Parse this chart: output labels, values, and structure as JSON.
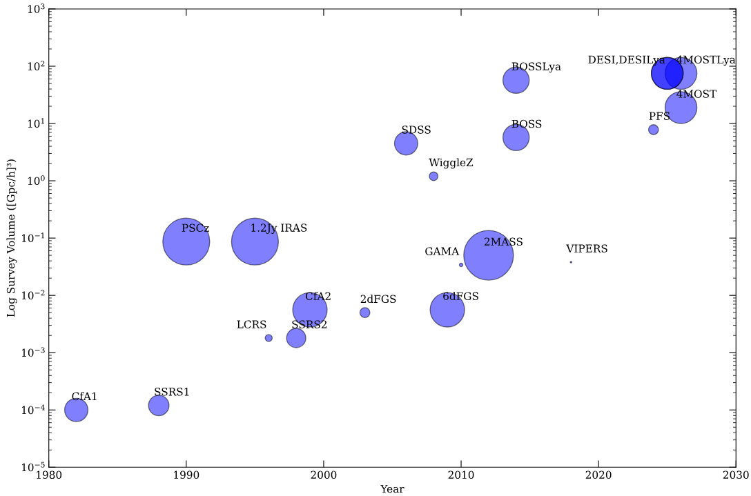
{
  "chart_data": {
    "type": "bubble",
    "xlabel": "Year",
    "ylabel": "Log Survey Volume ([Gpc/h]³)",
    "log": "y",
    "xlim": [
      1980,
      2030
    ],
    "xticks": [
      1980,
      1990,
      2000,
      2010,
      2020,
      2030
    ],
    "ylim": [
      1e-05,
      1000
    ],
    "yticks": [
      {
        "value": 1e-05,
        "label": "10$^{−5}$"
      },
      {
        "value": 0.0001,
        "label": "10$^{−4}$"
      },
      {
        "value": 0.001,
        "label": "10$^{−3}$"
      },
      {
        "value": 0.01,
        "label": "10$^{−2}$"
      },
      {
        "value": 0.1,
        "label": "10$^{−1}$"
      },
      {
        "value": 1,
        "label": "10$^{0}$"
      },
      {
        "value": 10,
        "label": "10$^{1}$"
      },
      {
        "value": 100,
        "label": "10$^{2}$"
      },
      {
        "value": 1000,
        "label": "10$^{3}$"
      }
    ],
    "grid": false,
    "legend": false,
    "series": [
      {
        "color": "#8080ff",
        "x": [
          1982,
          1988,
          1990,
          1995,
          1996,
          1998,
          1999,
          2003,
          2009,
          2010,
          2012,
          2018,
          2008,
          2006,
          2014,
          2014,
          2024,
          2026,
          2026,
          2025,
          2025
        ],
        "values": [
          0.0001,
          0.00012,
          0.087,
          0.087,
          0.0018,
          0.0018,
          0.0056,
          0.005,
          0.0056,
          0.034,
          0.05,
          0.038,
          1.2,
          4.5,
          5.7,
          57,
          7.8,
          19,
          75,
          75,
          75
        ],
        "sizes": [
          0.22,
          0.17,
          0.89,
          0.89,
          0.02,
          0.15,
          0.48,
          0.04,
          0.48,
          0.005,
          1,
          0.001,
          0.03,
          0.22,
          0.28,
          0.28,
          0.04,
          0.41,
          0.41,
          0.41,
          0.41
        ]
      }
    ],
    "annotations": [
      {
        "text": "CfA1",
        "x": 1982,
        "y": 0.0001
      },
      {
        "text": "SSRS1",
        "x": 1988,
        "y": 0.00012
      },
      {
        "text": "PSCz",
        "x": 1990,
        "y": 0.087
      },
      {
        "text": "1.2Jy IRAS",
        "x": 1995,
        "y": 0.087
      },
      {
        "text": "LCRS",
        "x": 1996,
        "y": 0.0018
      },
      {
        "text": "SSRS2",
        "x": 1998,
        "y": 0.0018
      },
      {
        "text": "CfA2",
        "x": 1999,
        "y": 0.0056
      },
      {
        "text": "2dFGS",
        "x": 2003,
        "y": 0.005
      },
      {
        "text": "6dFGS",
        "x": 2009,
        "y": 0.0056
      },
      {
        "text": "GAMA",
        "x": 2010,
        "y": 0.034
      },
      {
        "text": "2MASS",
        "x": 2012,
        "y": 0.05
      },
      {
        "text": "VIPERS",
        "x": 2018,
        "y": 0.038
      },
      {
        "text": "WiggleZ",
        "x": 2008,
        "y": 1.2
      },
      {
        "text": "SDSS",
        "x": 2006,
        "y": 4.5
      },
      {
        "text": "BOSS",
        "x": 2014,
        "y": 5.7
      },
      {
        "text": "BOSSLya",
        "x": 2014,
        "y": 57
      },
      {
        "text": "PFS",
        "x": 2024,
        "y": 7.8
      },
      {
        "text": "4MOST",
        "x": 2026,
        "y": 19
      },
      {
        "text": "4MOSTLya",
        "x": 2026,
        "y": 75
      },
      {
        "text": "DESI,DESILya",
        "x": 2025,
        "y": 75
      }
    ]
  }
}
